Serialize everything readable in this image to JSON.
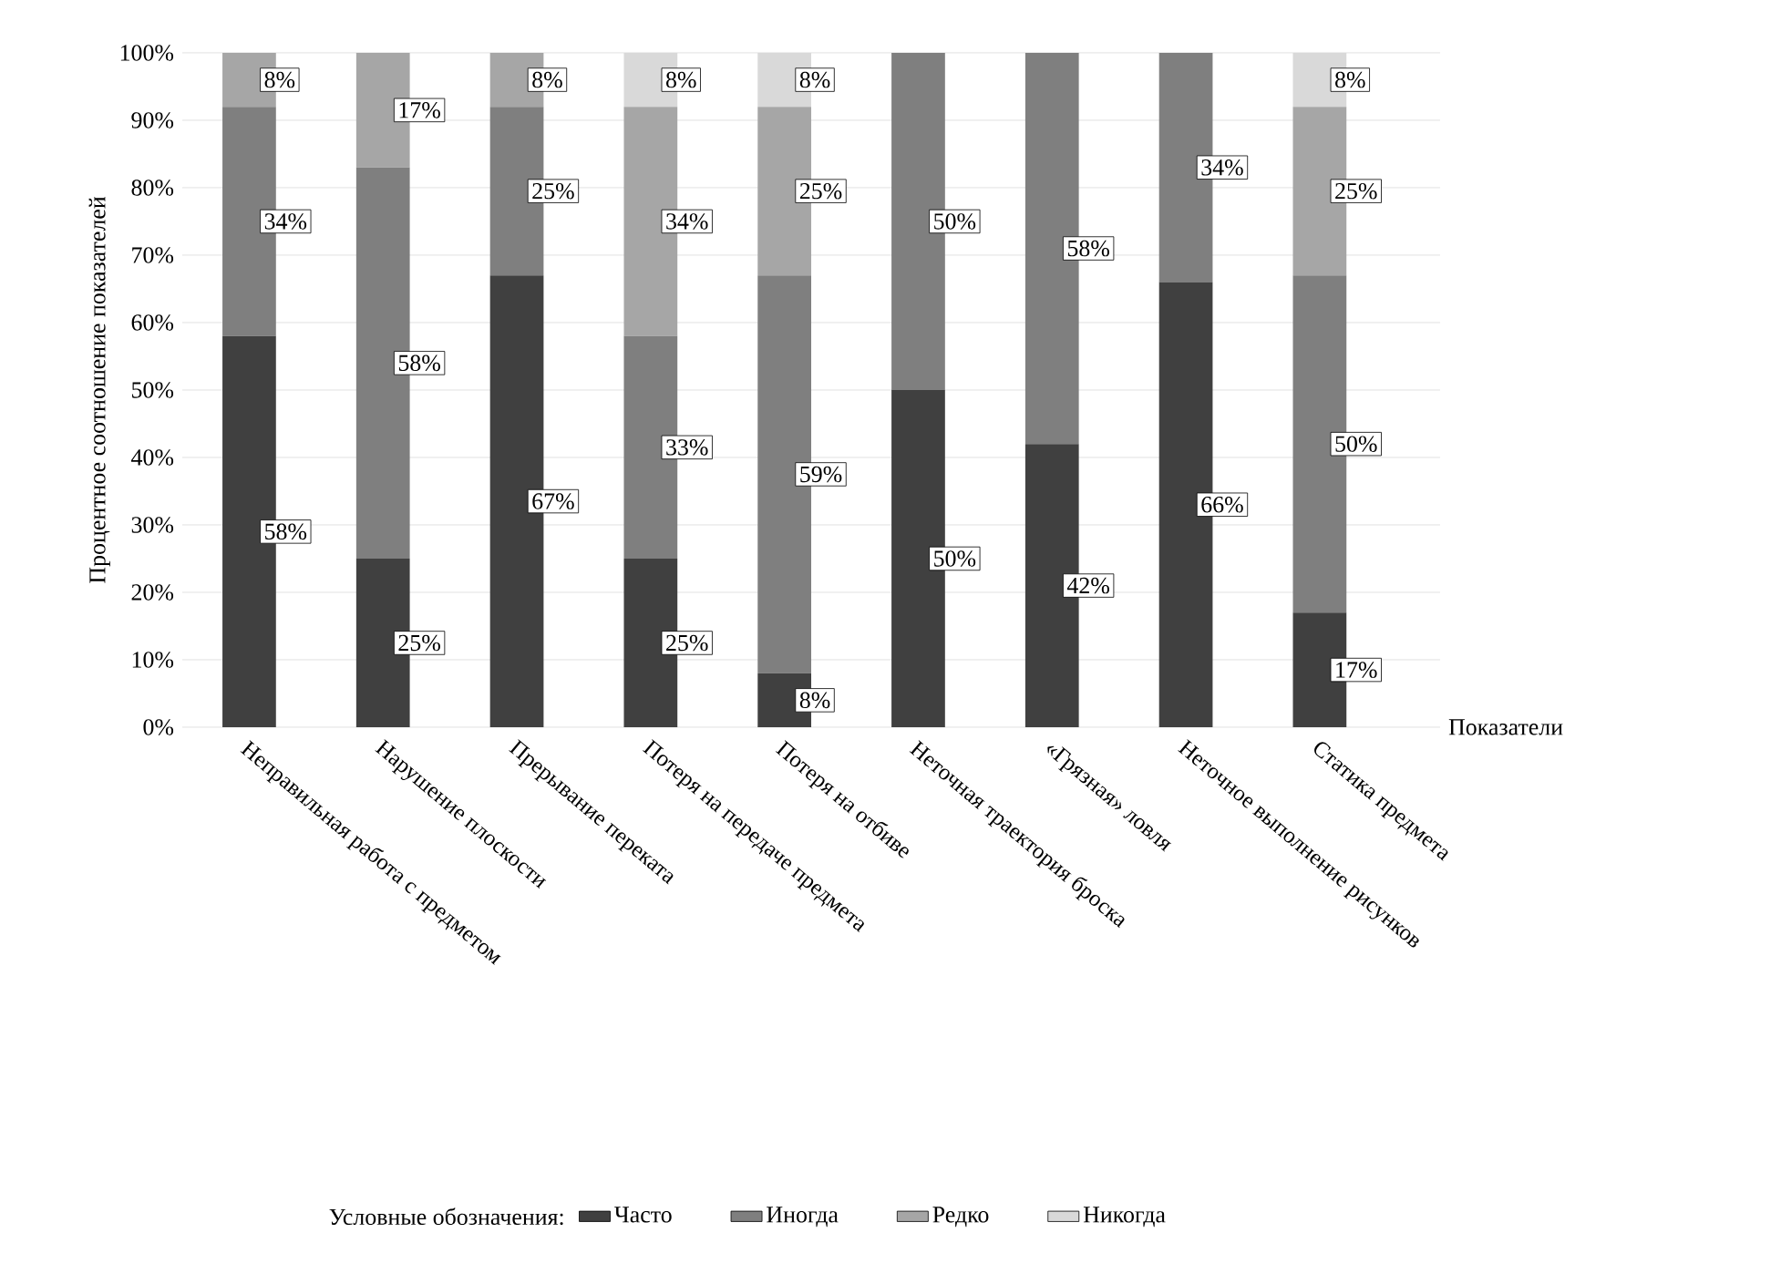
{
  "chart_data": {
    "type": "bar",
    "stacked": true,
    "ylabel": "Процентное соотношение показателей",
    "xlabel": "Показатели",
    "legend_title": "Условные обозначения:",
    "categories": [
      "Неправильная работа с предметом",
      "Нарушение плоскости",
      "Прерывание переката",
      "Потеря на передаче предмета",
      "Потеря на отбиве",
      "Неточная траектория броска",
      "«Грязная» ловля",
      "Неточное выполнение рисунков",
      "Статика предмета"
    ],
    "series": [
      {
        "name": "Часто",
        "color": "#404040",
        "values": [
          58,
          25,
          67,
          25,
          8,
          50,
          42,
          66,
          17
        ],
        "value_labels": [
          "58%",
          "25%",
          "67%",
          "25%",
          "8%",
          "50%",
          "42%",
          "66%",
          "17%"
        ]
      },
      {
        "name": "Иногда",
        "color": "#7f7f7f",
        "values": [
          34,
          58,
          25,
          33,
          59,
          50,
          58,
          34,
          50
        ],
        "value_labels": [
          "34%",
          "58%",
          "25%",
          "33%",
          "59%",
          "50%",
          "58%",
          "34%",
          "50%"
        ]
      },
      {
        "name": "Редко",
        "color": "#a6a6a6",
        "values": [
          8,
          17,
          8,
          34,
          25,
          0,
          0,
          0,
          25
        ],
        "value_labels": [
          "8%",
          "17%",
          "8%",
          "34%",
          "25%",
          null,
          null,
          null,
          "25%"
        ]
      },
      {
        "name": "Никогда",
        "color": "#d9d9d9",
        "values": [
          0,
          0,
          0,
          8,
          8,
          0,
          0,
          0,
          8
        ],
        "value_labels": [
          null,
          null,
          null,
          "8%",
          "8%",
          null,
          null,
          null,
          "8%"
        ]
      }
    ],
    "ylim": [
      0,
      100
    ],
    "yticks": [
      {
        "value": 0,
        "label": "0%"
      },
      {
        "value": 10,
        "label": "10%"
      },
      {
        "value": 20,
        "label": "20%"
      },
      {
        "value": 30,
        "label": "30%"
      },
      {
        "value": 40,
        "label": "40%"
      },
      {
        "value": 50,
        "label": "50%"
      },
      {
        "value": 60,
        "label": "60%"
      },
      {
        "value": 70,
        "label": "70%"
      },
      {
        "value": 80,
        "label": "80%"
      },
      {
        "value": 90,
        "label": "90%"
      },
      {
        "value": 100,
        "label": "100%"
      }
    ],
    "grid": "y",
    "legend": "bottom"
  }
}
